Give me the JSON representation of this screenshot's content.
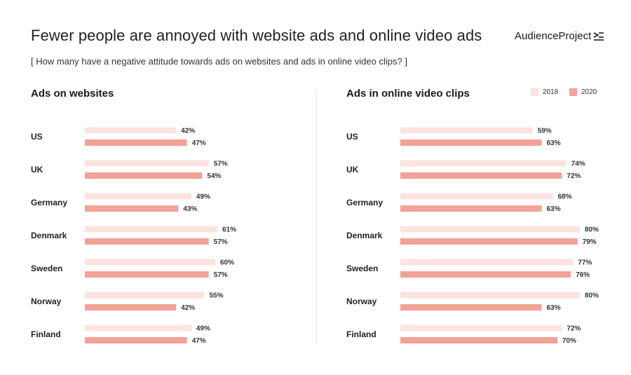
{
  "header": {
    "title": "Fewer people are annoyed with website ads and online video ads",
    "subtitle": "[ How many have a negative attitude towards ads on websites and ads in online video clips? ]",
    "logo_text": "AudienceProject"
  },
  "legend": [
    {
      "label": "2018",
      "color": "#fbe3df"
    },
    {
      "label": "2020",
      "color": "#f2a296"
    }
  ],
  "chart_data": [
    {
      "type": "bar",
      "orientation": "horizontal",
      "title": "Ads on websites",
      "categories": [
        "US",
        "UK",
        "Germany",
        "Denmark",
        "Sweden",
        "Norway",
        "Finland"
      ],
      "series": [
        {
          "name": "2018",
          "values": [
            42,
            57,
            49,
            61,
            60,
            55,
            49
          ],
          "color": "#fbe3df"
        },
        {
          "name": "2020",
          "values": [
            47,
            54,
            43,
            57,
            57,
            42,
            47
          ],
          "color": "#f2a296"
        }
      ],
      "value_suffix": "%",
      "xlim": [
        0,
        100
      ],
      "grid": false,
      "legend_position": "top-right"
    },
    {
      "type": "bar",
      "orientation": "horizontal",
      "title": "Ads in online video clips",
      "categories": [
        "US",
        "UK",
        "Germany",
        "Denmark",
        "Sweden",
        "Norway",
        "Finland"
      ],
      "series": [
        {
          "name": "2018",
          "values": [
            59,
            74,
            68,
            80,
            77,
            80,
            72
          ],
          "color": "#fbe3df"
        },
        {
          "name": "2020",
          "values": [
            63,
            72,
            63,
            79,
            76,
            63,
            70
          ],
          "color": "#f2a296"
        }
      ],
      "value_suffix": "%",
      "xlim": [
        0,
        100
      ],
      "grid": false,
      "legend_position": "top-right"
    }
  ]
}
